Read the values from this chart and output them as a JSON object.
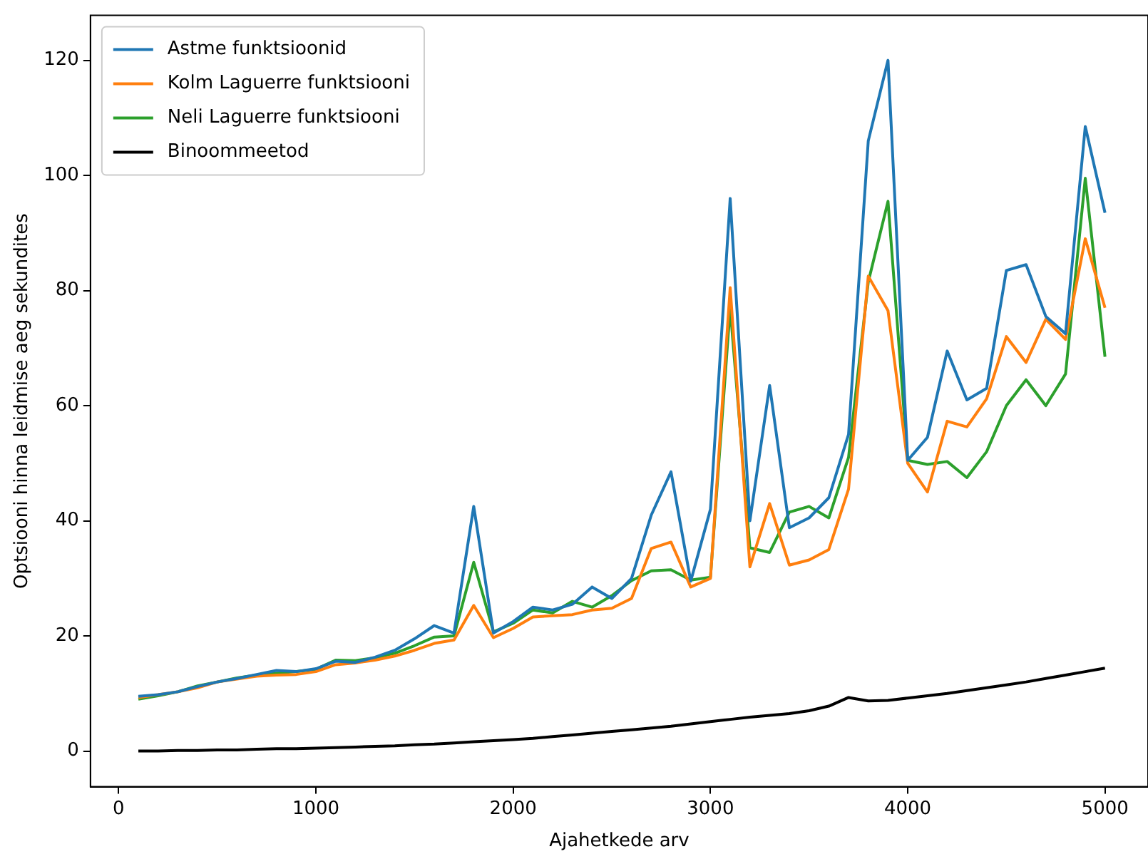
{
  "chart_data": {
    "type": "line",
    "xlabel": "Ajahetkede arv",
    "ylabel": "Optsiooni hinna leidmise aeg sekundites",
    "x": [
      100,
      200,
      300,
      400,
      500,
      600,
      700,
      800,
      900,
      1000,
      1100,
      1200,
      1300,
      1400,
      1500,
      1600,
      1700,
      1800,
      1900,
      2000,
      2100,
      2200,
      2300,
      2400,
      2500,
      2600,
      2700,
      2800,
      2900,
      3000,
      3100,
      3200,
      3300,
      3400,
      3500,
      3600,
      3700,
      3800,
      3900,
      4000,
      4100,
      4200,
      4300,
      4400,
      4500,
      4600,
      4700,
      4800,
      4900,
      5000
    ],
    "series": [
      {
        "name": "Astme funktsioonid",
        "color": "#1f77b4",
        "values": [
          9.5,
          9.8,
          10.3,
          11.2,
          12,
          12.6,
          13.3,
          14,
          13.8,
          14.3,
          15.6,
          15.4,
          16.3,
          17.5,
          19.5,
          21.8,
          20.5,
          42.5,
          20.5,
          22.5,
          25,
          24.5,
          25.5,
          28.5,
          26.5,
          30,
          41,
          48.5,
          29.5,
          42,
          96,
          40,
          63.5,
          38.8,
          40.5,
          44,
          55,
          106,
          120,
          50.5,
          54.5,
          69.5,
          61,
          63,
          83.5,
          84.5,
          75.5,
          72.5,
          108.5,
          93.5
        ]
      },
      {
        "name": "Kolm Laguerre funktsiooni",
        "color": "#ff7f0e",
        "values": [
          9.3,
          9.8,
          10.3,
          11,
          12,
          12.5,
          13,
          13.2,
          13.3,
          13.8,
          15,
          15.3,
          15.8,
          16.5,
          17.5,
          18.7,
          19.3,
          25.3,
          19.7,
          21.3,
          23.3,
          23.5,
          23.7,
          24.5,
          24.8,
          26.5,
          35.2,
          36.3,
          28.5,
          30,
          80.5,
          32,
          43,
          32.3,
          33.2,
          35,
          45.5,
          82.5,
          76.5,
          50,
          45,
          57.3,
          56.3,
          61.2,
          72,
          67.5,
          75,
          71.5,
          89,
          77
        ]
      },
      {
        "name": "Neli Laguerre funktsiooni",
        "color": "#2ca02c",
        "values": [
          9,
          9.6,
          10.3,
          11.3,
          12,
          12.7,
          13.2,
          13.5,
          13.8,
          14.2,
          15.8,
          15.7,
          16.2,
          17,
          18.3,
          19.8,
          20,
          32.8,
          20.7,
          22.2,
          24.5,
          24,
          26,
          25,
          27,
          29.6,
          31.3,
          31.5,
          29.7,
          30.2,
          77,
          35.3,
          34.5,
          41.5,
          42.5,
          40.5,
          51,
          81.5,
          95.5,
          50.5,
          49.8,
          50.3,
          47.5,
          52,
          60,
          64.5,
          60,
          65.5,
          99.5,
          68.5
        ]
      },
      {
        "name": "Binoommeetod",
        "color": "#000000",
        "values": [
          0,
          0,
          0.1,
          0.1,
          0.2,
          0.2,
          0.3,
          0.4,
          0.4,
          0.5,
          0.6,
          0.7,
          0.8,
          0.9,
          1.1,
          1.2,
          1.4,
          1.6,
          1.8,
          2,
          2.2,
          2.5,
          2.8,
          3.1,
          3.4,
          3.7,
          4,
          4.3,
          4.7,
          5.1,
          5.5,
          5.9,
          6.2,
          6.5,
          7,
          7.8,
          9.3,
          8.7,
          8.8,
          9.2,
          9.6,
          10,
          10.5,
          11,
          11.5,
          12,
          12.6,
          13.2,
          13.8,
          14.4
        ]
      }
    ],
    "xlim": [
      -143,
      5218
    ],
    "ylim": [
      -6.2,
      127.8
    ],
    "xticks": [
      0,
      1000,
      2000,
      3000,
      4000,
      5000
    ],
    "yticks": [
      0,
      20,
      40,
      60,
      80,
      100,
      120
    ],
    "grid": false,
    "legend": "top left",
    "marker": "none",
    "line_style": "solid"
  }
}
